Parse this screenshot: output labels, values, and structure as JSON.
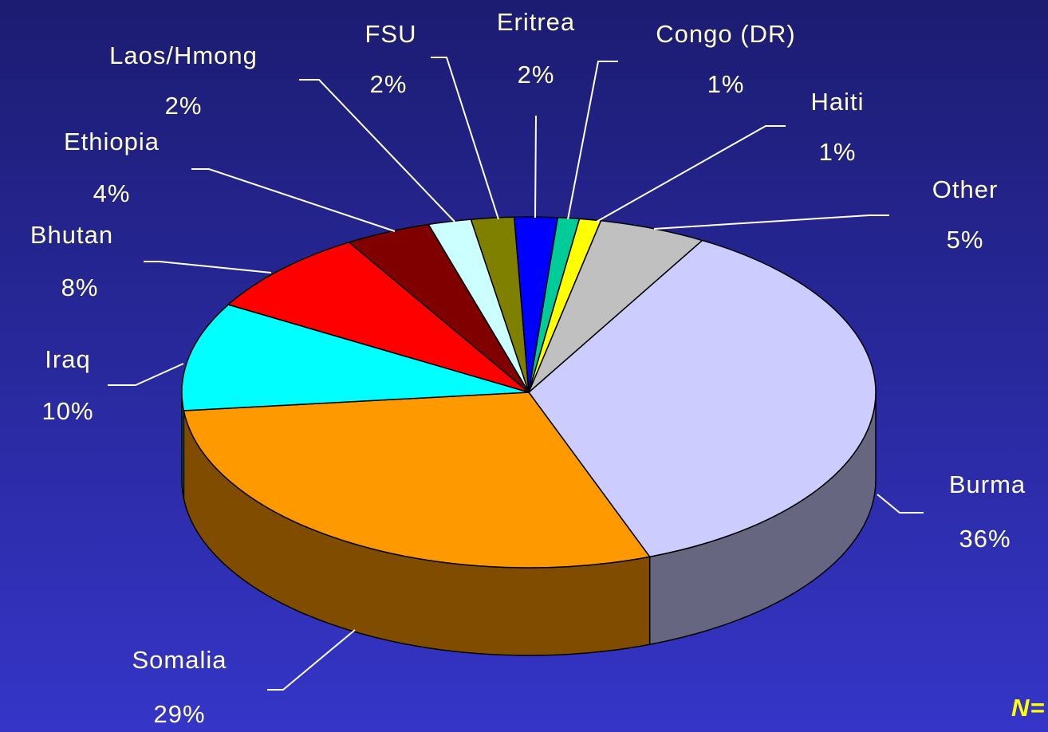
{
  "chart_data": {
    "type": "pie3d",
    "categories": [
      "Burma",
      "Somalia",
      "Iraq",
      "Bhutan",
      "Ethiopia",
      "Laos/Hmong",
      "FSU",
      "Eritrea",
      "Congo (DR)",
      "Haiti",
      "Other"
    ],
    "values": [
      36,
      29,
      10,
      8,
      4,
      2,
      2,
      2,
      1,
      1,
      5
    ],
    "value_labels": [
      "36%",
      "29%",
      "10%",
      "8%",
      "4%",
      "2%",
      "2%",
      "2%",
      "1%",
      "1%",
      "5%"
    ],
    "colors": [
      "#ccccff",
      "#ff9900",
      "#00ffff",
      "#ff0000",
      "#800000",
      "#ccffff",
      "#808000",
      "#0000ff",
      "#00cc99",
      "#ffff00",
      "#c0c0c0"
    ],
    "annotation": "N="
  }
}
